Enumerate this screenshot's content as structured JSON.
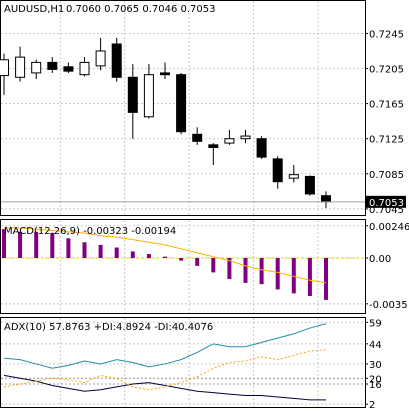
{
  "chart_data": [
    {
      "type": "candlestick",
      "title": "AUDUSD,H1",
      "ohlc_readout": "0.7060 0.7065 0.7046 0.7053",
      "current_price_label": "0.7053",
      "y_ticks": [
        "0.7245",
        "0.7205",
        "0.7165",
        "0.7125",
        "0.7085",
        "0.7045"
      ],
      "ylim": [
        0.7038,
        0.7282
      ],
      "colors": {
        "bull": "#ffffff",
        "bear": "#000000",
        "wick": "#000000",
        "price_tag": "#000000"
      },
      "candles": [
        {
          "o": 0.7197,
          "h": 0.7222,
          "l": 0.7175,
          "c": 0.7215
        },
        {
          "o": 0.7195,
          "h": 0.723,
          "l": 0.719,
          "c": 0.7218
        },
        {
          "o": 0.72,
          "h": 0.7215,
          "l": 0.7193,
          "c": 0.7212
        },
        {
          "o": 0.7212,
          "h": 0.7218,
          "l": 0.72,
          "c": 0.7204
        },
        {
          "o": 0.7207,
          "h": 0.7212,
          "l": 0.72,
          "c": 0.7202
        },
        {
          "o": 0.7198,
          "h": 0.7218,
          "l": 0.7196,
          "c": 0.7212
        },
        {
          "o": 0.7208,
          "h": 0.724,
          "l": 0.7203,
          "c": 0.7225
        },
        {
          "o": 0.7233,
          "h": 0.724,
          "l": 0.719,
          "c": 0.7195
        },
        {
          "o": 0.7195,
          "h": 0.721,
          "l": 0.7125,
          "c": 0.7155
        },
        {
          "o": 0.715,
          "h": 0.721,
          "l": 0.7148,
          "c": 0.7198
        },
        {
          "o": 0.72,
          "h": 0.7212,
          "l": 0.7193,
          "c": 0.7198
        },
        {
          "o": 0.7198,
          "h": 0.72,
          "l": 0.713,
          "c": 0.7133
        },
        {
          "o": 0.713,
          "h": 0.7138,
          "l": 0.7118,
          "c": 0.7122
        },
        {
          "o": 0.7118,
          "h": 0.712,
          "l": 0.7095,
          "c": 0.7115
        },
        {
          "o": 0.712,
          "h": 0.7135,
          "l": 0.7118,
          "c": 0.7125
        },
        {
          "o": 0.7125,
          "h": 0.7135,
          "l": 0.712,
          "c": 0.7128
        },
        {
          "o": 0.7125,
          "h": 0.7128,
          "l": 0.7102,
          "c": 0.7104
        },
        {
          "o": 0.7102,
          "h": 0.7105,
          "l": 0.7068,
          "c": 0.7076
        },
        {
          "o": 0.708,
          "h": 0.7095,
          "l": 0.7075,
          "c": 0.7084
        },
        {
          "o": 0.7082,
          "h": 0.7083,
          "l": 0.706,
          "c": 0.7062
        },
        {
          "o": 0.706,
          "h": 0.7065,
          "l": 0.7046,
          "c": 0.7053
        }
      ]
    },
    {
      "type": "bar",
      "title": "MACD(12,26,9) -0.00323 -0.00194",
      "y_ticks": [
        "0.00246",
        "0.00",
        "-0.0035"
      ],
      "ylim": [
        -0.0042,
        0.0029
      ],
      "colors": {
        "histogram": "#800080",
        "signal": "#ffb000",
        "zero_line": "#d8d800"
      },
      "histogram": [
        0.0022,
        0.002,
        0.002,
        0.0019,
        0.0015,
        0.0012,
        0.001,
        0.0008,
        0.0005,
        0.0003,
        0.0001,
        -0.0002,
        -0.0006,
        -0.0011,
        -0.0016,
        -0.0019,
        -0.002,
        -0.0024,
        -0.0027,
        -0.0029,
        -0.0032
      ],
      "signal": [
        0.0023,
        0.0023,
        0.0022,
        0.0021,
        0.002,
        0.0019,
        0.0017,
        0.0016,
        0.0014,
        0.0012,
        0.001,
        0.0007,
        0.0004,
        0.0001,
        -0.0002,
        -0.0006,
        -0.0009,
        -0.0011,
        -0.0014,
        -0.0017,
        -0.0019
      ]
    },
    {
      "type": "line",
      "title": "ADX(10) 57.8763 +DI:4.8924 -DI:40.4076",
      "y_ticks": [
        "59",
        "44",
        "30",
        "20",
        "16",
        "2"
      ],
      "ylim": [
        0,
        62
      ],
      "colors": {
        "adx": "#1e90a0",
        "plus_di": "#000040",
        "minus_di": "#ffa500",
        "level": "#a0a0a0"
      },
      "levels": [
        20,
        16
      ],
      "adx": [
        34,
        33,
        30,
        27,
        29,
        32,
        30,
        33,
        31,
        28,
        30,
        33,
        38,
        44,
        42,
        42,
        45,
        48,
        51,
        55,
        58
      ],
      "plus_di": [
        22,
        20,
        18,
        15,
        13,
        11,
        12,
        14,
        16,
        17,
        15,
        13,
        11,
        10,
        9,
        8,
        8,
        7,
        6,
        5,
        5
      ],
      "minus_di": [
        14,
        16,
        18,
        20,
        19,
        17,
        22,
        20,
        14,
        12,
        14,
        17,
        21,
        27,
        31,
        32,
        35,
        33,
        36,
        39,
        40
      ]
    }
  ]
}
